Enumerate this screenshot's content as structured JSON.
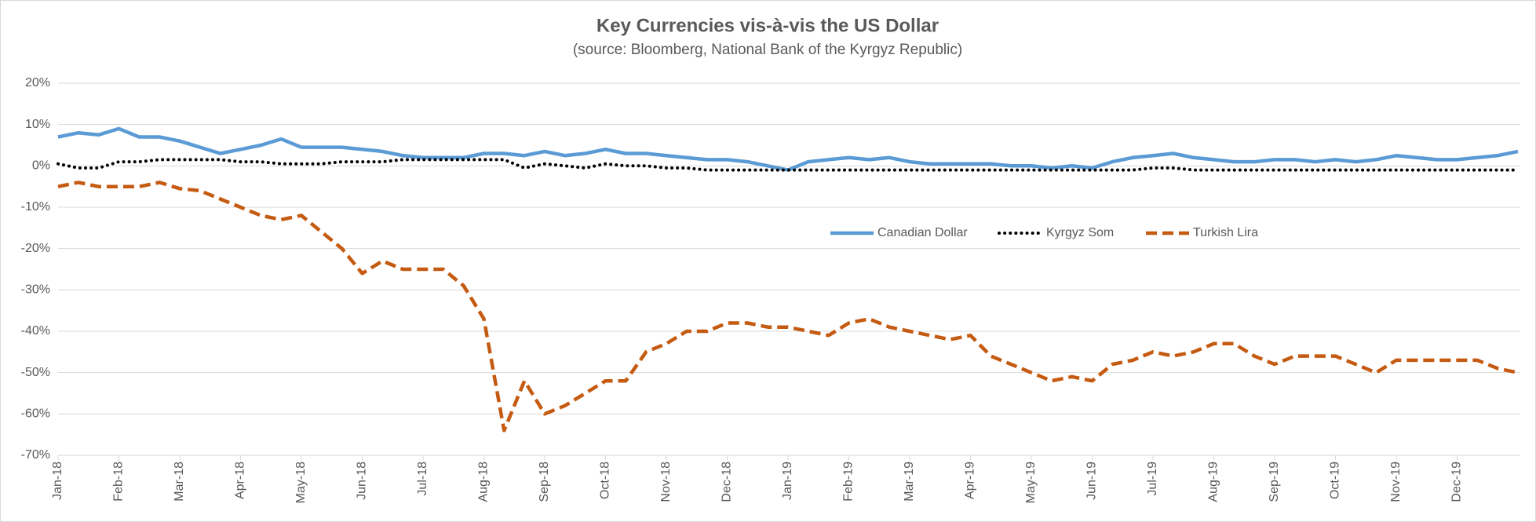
{
  "chart_data": {
    "type": "line",
    "title": "Key Currencies vis-à-vis the US Dollar",
    "subtitle": "(source: Bloomberg, National Bank of the Kyrgyz Republic)",
    "categories": [
      "Jan-18",
      null,
      null,
      "Feb-18",
      null,
      null,
      "Mar-18",
      null,
      null,
      "Apr-18",
      null,
      null,
      "May-18",
      null,
      null,
      "Jun-18",
      null,
      null,
      "Jul-18",
      null,
      null,
      "Aug-18",
      null,
      null,
      "Sep-18",
      null,
      null,
      "Oct-18",
      null,
      null,
      "Nov-18",
      null,
      null,
      "Dec-18",
      null,
      null,
      "Jan-19",
      null,
      null,
      "Feb-19",
      null,
      null,
      "Mar-19",
      null,
      null,
      "Apr-19",
      null,
      null,
      "May-19",
      null,
      null,
      "Jun-19",
      null,
      null,
      "Jul-19",
      null,
      null,
      "Aug-19",
      null,
      null,
      "Sep-19",
      null,
      null,
      "Oct-19",
      null,
      null,
      "Nov-19",
      null,
      null,
      "Dec-19",
      null,
      null,
      null
    ],
    "series": [
      {
        "name": "Canadian Dollar",
        "color": "#5b9bd5",
        "style": "solid",
        "values": [
          7,
          8,
          7.5,
          9,
          7,
          7,
          6,
          4.5,
          3,
          4,
          5,
          6.5,
          4.5,
          4.5,
          4.5,
          4,
          3.5,
          2.5,
          2,
          2,
          2,
          3,
          3,
          2.5,
          3.5,
          2.5,
          3,
          4,
          3,
          3,
          2.5,
          2,
          1.5,
          1.5,
          1,
          0,
          -1,
          1,
          1.5,
          2,
          1.5,
          2,
          1,
          0.5,
          0.5,
          0.5,
          0.5,
          0,
          0,
          -0.5,
          0,
          -0.5,
          1,
          2,
          2.5,
          3,
          2,
          1.5,
          1,
          1,
          1.5,
          1.5,
          1,
          1.5,
          1,
          1.5,
          2.5,
          2,
          1.5,
          1.5,
          2,
          2.5,
          3.5
        ]
      },
      {
        "name": "Kyrgyz Som",
        "color": "#000000",
        "style": "dotted",
        "values": [
          0.5,
          -0.5,
          -0.5,
          1,
          1,
          1.5,
          1.5,
          1.5,
          1.5,
          1,
          1,
          0.5,
          0.5,
          0.5,
          1,
          1,
          1,
          1.5,
          1.5,
          1.5,
          1.5,
          1.5,
          1.5,
          -0.5,
          0.5,
          0,
          -0.5,
          0.5,
          0,
          0,
          -0.5,
          -0.5,
          -1,
          -1,
          -1,
          -1,
          -1,
          -1,
          -1,
          -1,
          -1,
          -1,
          -1,
          -1,
          -1,
          -1,
          -1,
          -1,
          -1,
          -1,
          -1,
          -1,
          -1,
          -1,
          -0.5,
          -0.5,
          -1,
          -1,
          -1,
          -1,
          -1,
          -1,
          -1,
          -1,
          -1,
          -1,
          -1,
          -1,
          -1,
          -1,
          -1,
          -1,
          -1
        ]
      },
      {
        "name": "Turkish Lira",
        "color": "#c55a11",
        "style": "dashed",
        "values": [
          -5,
          -4,
          -5,
          -5,
          -5,
          -4,
          -5.5,
          -6,
          -8,
          -10,
          -12,
          -13,
          -12,
          -16,
          -20,
          -26,
          -23,
          -25,
          -25,
          -25,
          -29,
          -37,
          -64,
          -52,
          -60,
          -58,
          -55,
          -52,
          -52,
          -45,
          -43,
          -40,
          -40,
          -38,
          -38,
          -39,
          -39,
          -40,
          -41,
          -38,
          -37,
          -39,
          -40,
          -41,
          -42,
          -41,
          -46,
          -48,
          -50,
          -52,
          -51,
          -52,
          -48,
          -47,
          -45,
          -46,
          -45,
          -43,
          -43,
          -46,
          -48,
          -46,
          -46,
          -46,
          -48,
          -50,
          -47,
          -47,
          -47,
          -47,
          -47,
          -49,
          -50
        ]
      }
    ],
    "ylim": [
      -70,
      20
    ],
    "yticks": [
      {
        "value": -70,
        "label": "-70%"
      },
      {
        "value": -60,
        "label": "-60%"
      },
      {
        "value": -50,
        "label": "-50%"
      },
      {
        "value": -40,
        "label": "-40%"
      },
      {
        "value": -30,
        "label": "-30%"
      },
      {
        "value": -20,
        "label": "-20%"
      },
      {
        "value": -10,
        "label": "-10%"
      },
      {
        "value": 0,
        "label": "0%"
      },
      {
        "value": 10,
        "label": "10%"
      },
      {
        "value": 20,
        "label": "20%"
      }
    ],
    "grid": true,
    "legend": "center"
  }
}
